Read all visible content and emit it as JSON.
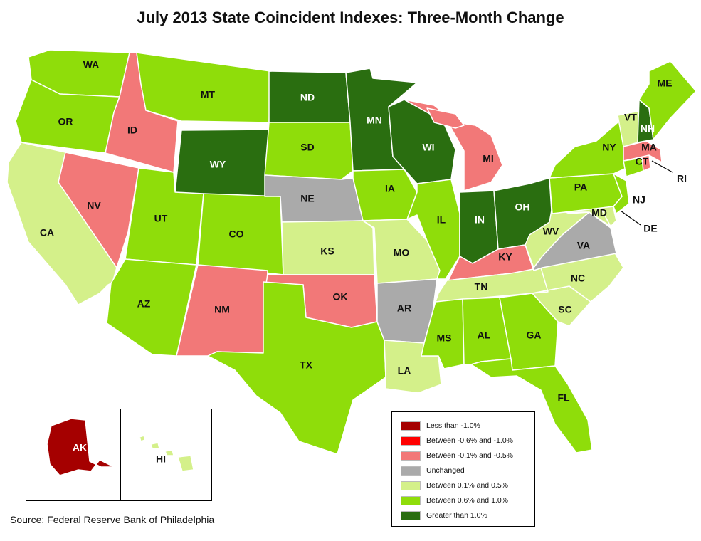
{
  "title": "July 2013 State Coincident Indexes: Three-Month Change",
  "source": "Source: Federal Reserve Bank of Philadelphia",
  "colors": {
    "lt_neg1": "#a50000",
    "neg06_neg1": "#ff0000",
    "neg01_neg05": "#f27878",
    "unchanged": "#aaaaaa",
    "pos01_05": "#d4f08a",
    "pos06_1": "#8fdd0a",
    "gt1": "#2a6e10"
  },
  "legend": [
    {
      "key": "lt_neg1",
      "label": "Less than -1.0%"
    },
    {
      "key": "neg06_neg1",
      "label": "Between -0.6% and -1.0%"
    },
    {
      "key": "neg01_neg05",
      "label": "Between -0.1% and -0.5%"
    },
    {
      "key": "unchanged",
      "label": "Unchanged"
    },
    {
      "key": "pos01_05",
      "label": "Between 0.1% and 0.5%"
    },
    {
      "key": "pos06_1",
      "label": "Between 0.6% and 1.0%"
    },
    {
      "key": "gt1",
      "label": "Greater than 1.0%"
    }
  ],
  "states": {
    "WA": "pos06_1",
    "OR": "pos06_1",
    "CA": "pos01_05",
    "ID": "neg01_neg05",
    "NV": "neg01_neg05",
    "MT": "pos06_1",
    "WY": "gt1",
    "UT": "pos06_1",
    "AZ": "pos06_1",
    "CO": "pos06_1",
    "NM": "neg01_neg05",
    "ND": "gt1",
    "SD": "pos06_1",
    "NE": "unchanged",
    "KS": "pos01_05",
    "OK": "neg01_neg05",
    "TX": "pos06_1",
    "MN": "gt1",
    "IA": "pos06_1",
    "MO": "pos01_05",
    "AR": "unchanged",
    "LA": "pos01_05",
    "WI": "gt1",
    "IL": "pos06_1",
    "MI": "neg01_neg05",
    "IN": "gt1",
    "OH": "gt1",
    "KY": "neg01_neg05",
    "TN": "pos01_05",
    "MS": "pos06_1",
    "AL": "pos06_1",
    "GA": "pos06_1",
    "FL": "pos06_1",
    "SC": "pos01_05",
    "NC": "pos01_05",
    "VA": "unchanged",
    "WV": "pos01_05",
    "MD": "pos01_05",
    "DE": "pos01_05",
    "PA": "pos06_1",
    "NJ": "pos06_1",
    "NY": "pos06_1",
    "CT": "pos06_1",
    "RI": "neg01_neg05",
    "MA": "neg01_neg05",
    "VT": "pos01_05",
    "NH": "gt1",
    "ME": "pos06_1",
    "AK": "lt_neg1",
    "HI": "pos01_05"
  }
}
